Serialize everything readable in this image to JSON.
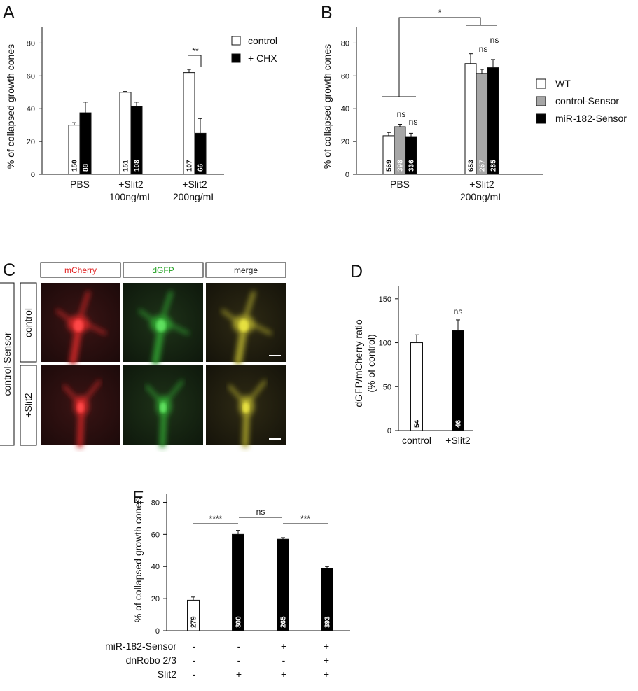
{
  "chart_data": [
    {
      "id": "A",
      "type": "bar",
      "panel_letter": "A",
      "ylabel": "% of collapsed growth cones",
      "ylim": [
        0,
        90
      ],
      "yticks": [
        0,
        20,
        40,
        60,
        80
      ],
      "categories": [
        [
          "PBS"
        ],
        [
          "+Slit2",
          "100ng/mL"
        ],
        [
          "+Slit2",
          "200ng/mL"
        ]
      ],
      "series": [
        {
          "name": "control",
          "color": "#ffffff",
          "values": [
            30,
            50,
            62
          ],
          "errors": [
            1.5,
            0.5,
            2
          ],
          "n": [
            "150",
            "151",
            "107"
          ]
        },
        {
          "name": "+ CHX",
          "color": "#000000",
          "values": [
            37.5,
            41.5,
            25
          ],
          "errors": [
            6.5,
            2.5,
            9
          ],
          "n": [
            "88",
            "108",
            "66"
          ]
        }
      ],
      "annotations": [
        {
          "text": "**",
          "category": 2
        }
      ],
      "legend": "top-right"
    },
    {
      "id": "B",
      "type": "bar",
      "panel_letter": "B",
      "ylabel": "% of collapsed growth cones",
      "ylim": [
        0,
        90
      ],
      "yticks": [
        0,
        20,
        40,
        60,
        80
      ],
      "categories": [
        [
          "PBS"
        ],
        [
          "+Slit2",
          "200ng/mL"
        ]
      ],
      "series": [
        {
          "name": "WT",
          "color": "#ffffff",
          "values": [
            23.5,
            67.5
          ],
          "errors": [
            2,
            6
          ],
          "n": [
            "569",
            "653"
          ]
        },
        {
          "name": "control-Sensor",
          "color": "#a6a6a6",
          "values": [
            29,
            61.5
          ],
          "errors": [
            1.5,
            2.5
          ],
          "n": [
            "398",
            "267"
          ]
        },
        {
          "name": "miR-182-Sensor",
          "color": "#000000",
          "values": [
            23,
            65
          ],
          "errors": [
            2,
            5
          ],
          "n": [
            "336",
            "285"
          ]
        }
      ],
      "annotations": [
        "*",
        "ns",
        "ns",
        "ns",
        "ns"
      ],
      "legend": "right"
    },
    {
      "id": "D",
      "type": "bar",
      "panel_letter": "D",
      "ylabel": [
        "dGFP/mCherry ratio",
        "(% of control)"
      ],
      "ylim": [
        0,
        165
      ],
      "yticks": [
        0,
        50,
        100,
        150
      ],
      "categories": [
        "control",
        "+Slit2"
      ],
      "values": [
        100,
        114
      ],
      "errors": [
        9,
        12
      ],
      "colors": [
        "#ffffff",
        "#000000"
      ],
      "n": [
        "54",
        "46"
      ],
      "annotations": [
        "ns"
      ]
    },
    {
      "id": "E",
      "type": "bar",
      "panel_letter": "E",
      "ylabel": "% of collapsed growth cones",
      "ylim": [
        0,
        85
      ],
      "yticks": [
        0,
        20,
        40,
        60,
        80
      ],
      "categories": [
        "1",
        "2",
        "3",
        "4"
      ],
      "values": [
        19,
        60,
        57,
        39
      ],
      "errors": [
        2,
        2.5,
        1,
        1
      ],
      "colors": [
        "#ffffff",
        "#000000",
        "#000000",
        "#000000"
      ],
      "n": [
        "279",
        "300",
        "265",
        "393"
      ],
      "annotations": [
        "****",
        "ns",
        "***"
      ],
      "conditions": [
        {
          "label": "miR-182-Sensor",
          "marks": [
            "-",
            "-",
            "+",
            "+"
          ]
        },
        {
          "label": "dnRobo 2/3",
          "marks": [
            "-",
            "-",
            "-",
            "+"
          ]
        },
        {
          "label": "Slit2",
          "marks": [
            "-",
            "+",
            "+",
            "+"
          ]
        }
      ]
    }
  ],
  "panel_c": {
    "letter": "C",
    "columns": [
      {
        "label": "mCherry",
        "color": "#e02020"
      },
      {
        "label": "dGFP",
        "color": "#20a020"
      },
      {
        "label": "merge",
        "color": "#111111"
      }
    ],
    "group_label": "control-Sensor",
    "rows": [
      "control",
      "+Slit2"
    ]
  }
}
